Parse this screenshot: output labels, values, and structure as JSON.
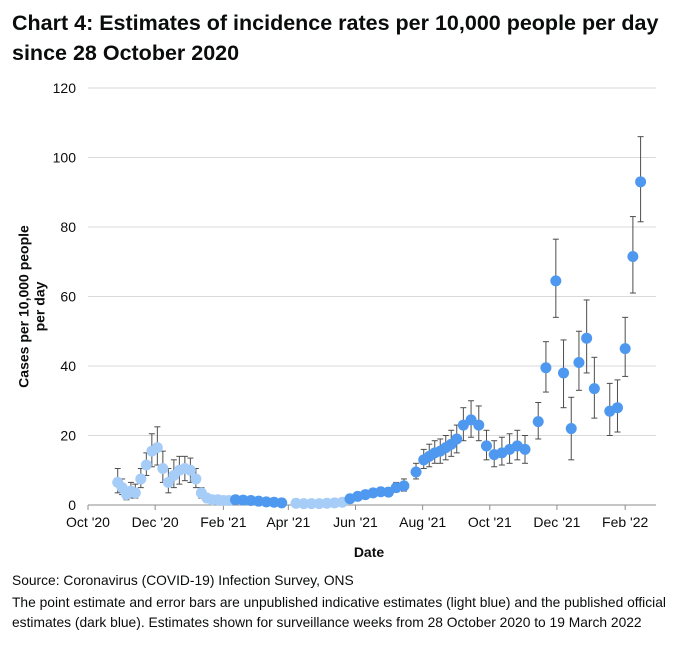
{
  "title": "Chart 4: Estimates of incidence rates per 10,000 people per day since 28 October 2020",
  "source": "Source: Coronavirus (COVID-19) Infection Survey, ONS",
  "note": "The point estimate and error bars are unpublished indicative estimates (light blue) and the published official estimates (dark blue). Estimates shown for surveillance weeks from 28 October 2020 to 19 March 2022",
  "colors": {
    "light": "#a6cdf7",
    "dark": "#4e98f0",
    "errorbar": "#4d4d4d",
    "grid": "#d9d9d9"
  },
  "chart_data": {
    "type": "scatter",
    "xlabel": "Date",
    "ylabel": "Cases per 10,000 people per day",
    "ylim": [
      0,
      120
    ],
    "yticks": [
      0,
      20,
      40,
      60,
      80,
      100,
      120
    ],
    "xlim": [
      "2020-10-01",
      "2022-03-01"
    ],
    "xticks": [
      {
        "date": "2020-10-01",
        "label": "Oct '20"
      },
      {
        "date": "2020-12-01",
        "label": "Dec '20"
      },
      {
        "date": "2021-02-01",
        "label": "Feb '21"
      },
      {
        "date": "2021-04-01",
        "label": "Apr '21"
      },
      {
        "date": "2021-06-01",
        "label": "Jun '21"
      },
      {
        "date": "2021-08-01",
        "label": "Aug '21"
      },
      {
        "date": "2021-10-01",
        "label": "Oct '21"
      },
      {
        "date": "2021-12-01",
        "label": "Dec '21"
      },
      {
        "date": "2022-02-01",
        "label": "Feb '22"
      }
    ],
    "grid": "horizontal",
    "series": [
      {
        "type": "unpublished",
        "points": [
          {
            "x": "2020-10-28",
            "y": 6.5,
            "lo": 3.5,
            "hi": 10.5
          },
          {
            "x": "2020-11-01",
            "y": 5.0,
            "lo": 3.0,
            "hi": 7.5
          },
          {
            "x": "2020-11-05",
            "y": 3.0,
            "lo": 1.5,
            "hi": 5.0
          },
          {
            "x": "2020-11-09",
            "y": 4.0,
            "lo": 2.0,
            "hi": 6.5
          },
          {
            "x": "2020-11-13",
            "y": 3.5,
            "lo": 2.0,
            "hi": 6.0
          },
          {
            "x": "2020-11-18",
            "y": 7.5,
            "lo": 5.0,
            "hi": 10.5
          },
          {
            "x": "2020-11-23",
            "y": 11.5,
            "lo": 8.5,
            "hi": 15.0
          },
          {
            "x": "2020-11-28",
            "y": 15.5,
            "lo": 11.0,
            "hi": 20.5
          },
          {
            "x": "2020-12-03",
            "y": 16.5,
            "lo": 11.5,
            "hi": 22.5
          },
          {
            "x": "2020-12-08",
            "y": 10.5,
            "lo": 6.5,
            "hi": 15.5
          },
          {
            "x": "2020-12-13",
            "y": 6.5,
            "lo": 3.5,
            "hi": 10.5
          },
          {
            "x": "2020-12-18",
            "y": 8.5,
            "lo": 5.0,
            "hi": 13.0
          },
          {
            "x": "2020-12-23",
            "y": 10.0,
            "lo": 6.0,
            "hi": 14.0
          },
          {
            "x": "2020-12-28",
            "y": 10.5,
            "lo": 7.0,
            "hi": 14.0
          },
          {
            "x": "2021-01-02",
            "y": 10.0,
            "lo": 6.5,
            "hi": 13.5
          },
          {
            "x": "2021-01-07",
            "y": 7.5,
            "lo": 5.0,
            "hi": 10.5
          },
          {
            "x": "2021-01-12",
            "y": 3.5,
            "lo": 2.0,
            "hi": 5.0
          },
          {
            "x": "2021-01-17",
            "y": 2.0,
            "lo": 1.2,
            "hi": 3.0
          },
          {
            "x": "2021-01-22",
            "y": 1.5,
            "lo": 1.0,
            "hi": 2.3
          },
          {
            "x": "2021-01-27",
            "y": 1.5,
            "lo": 1.0,
            "hi": 2.0
          },
          {
            "x": "2021-02-01",
            "y": 1.3,
            "lo": 0.9,
            "hi": 1.8
          },
          {
            "x": "2021-02-06",
            "y": 1.3,
            "lo": 0.9,
            "hi": 1.8
          },
          {
            "x": "2021-04-08",
            "y": 0.5,
            "lo": 0.3,
            "hi": 0.8
          },
          {
            "x": "2021-04-15",
            "y": 0.4,
            "lo": 0.2,
            "hi": 0.7
          },
          {
            "x": "2021-04-22",
            "y": 0.4,
            "lo": 0.2,
            "hi": 0.7
          },
          {
            "x": "2021-04-29",
            "y": 0.4,
            "lo": 0.2,
            "hi": 0.7
          },
          {
            "x": "2021-05-06",
            "y": 0.5,
            "lo": 0.3,
            "hi": 0.8
          },
          {
            "x": "2021-05-13",
            "y": 0.6,
            "lo": 0.3,
            "hi": 0.9
          },
          {
            "x": "2021-05-20",
            "y": 0.8,
            "lo": 0.5,
            "hi": 1.2
          }
        ]
      },
      {
        "type": "published",
        "points": [
          {
            "x": "2021-02-12",
            "y": 1.5,
            "lo": 1.0,
            "hi": 2.2
          },
          {
            "x": "2021-02-19",
            "y": 1.4,
            "lo": 1.0,
            "hi": 2.0
          },
          {
            "x": "2021-02-26",
            "y": 1.3,
            "lo": 0.9,
            "hi": 1.8
          },
          {
            "x": "2021-03-05",
            "y": 1.1,
            "lo": 0.8,
            "hi": 1.5
          },
          {
            "x": "2021-03-12",
            "y": 0.9,
            "lo": 0.6,
            "hi": 1.3
          },
          {
            "x": "2021-03-19",
            "y": 0.8,
            "lo": 0.5,
            "hi": 1.2
          },
          {
            "x": "2021-03-26",
            "y": 0.6,
            "lo": 0.4,
            "hi": 1.0
          },
          {
            "x": "2021-05-27",
            "y": 1.8,
            "lo": 1.2,
            "hi": 2.6
          },
          {
            "x": "2021-06-03",
            "y": 2.5,
            "lo": 1.8,
            "hi": 3.3
          },
          {
            "x": "2021-06-10",
            "y": 3.0,
            "lo": 2.2,
            "hi": 4.0
          },
          {
            "x": "2021-06-17",
            "y": 3.5,
            "lo": 2.5,
            "hi": 4.6
          },
          {
            "x": "2021-06-24",
            "y": 3.8,
            "lo": 2.8,
            "hi": 5.0
          },
          {
            "x": "2021-07-01",
            "y": 3.7,
            "lo": 2.7,
            "hi": 5.0
          },
          {
            "x": "2021-07-08",
            "y": 5.0,
            "lo": 3.8,
            "hi": 6.5
          },
          {
            "x": "2021-07-15",
            "y": 5.5,
            "lo": 4.0,
            "hi": 7.5
          },
          {
            "x": "2021-07-26",
            "y": 9.5,
            "lo": 7.5,
            "hi": 12.0
          },
          {
            "x": "2021-08-02",
            "y": 13.0,
            "lo": 10.5,
            "hi": 16.0
          },
          {
            "x": "2021-08-07",
            "y": 14.0,
            "lo": 11.0,
            "hi": 17.5
          },
          {
            "x": "2021-08-12",
            "y": 15.0,
            "lo": 12.0,
            "hi": 18.5
          },
          {
            "x": "2021-08-17",
            "y": 15.5,
            "lo": 12.0,
            "hi": 19.0
          },
          {
            "x": "2021-08-22",
            "y": 16.5,
            "lo": 13.0,
            "hi": 20.0
          },
          {
            "x": "2021-08-27",
            "y": 17.5,
            "lo": 14.0,
            "hi": 21.5
          },
          {
            "x": "2021-09-01",
            "y": 19.0,
            "lo": 15.0,
            "hi": 23.0
          },
          {
            "x": "2021-09-07",
            "y": 23.0,
            "lo": 18.5,
            "hi": 28.0
          },
          {
            "x": "2021-09-14",
            "y": 24.5,
            "lo": 19.5,
            "hi": 30.0
          },
          {
            "x": "2021-09-21",
            "y": 23.0,
            "lo": 18.5,
            "hi": 28.5
          },
          {
            "x": "2021-09-28",
            "y": 17.0,
            "lo": 13.0,
            "hi": 21.5
          },
          {
            "x": "2021-10-05",
            "y": 14.5,
            "lo": 11.0,
            "hi": 18.5
          },
          {
            "x": "2021-10-12",
            "y": 15.0,
            "lo": 11.5,
            "hi": 19.5
          },
          {
            "x": "2021-10-19",
            "y": 16.0,
            "lo": 12.0,
            "hi": 20.5
          },
          {
            "x": "2021-10-26",
            "y": 17.0,
            "lo": 13.0,
            "hi": 21.5
          },
          {
            "x": "2021-11-02",
            "y": 16.0,
            "lo": 12.0,
            "hi": 20.0
          },
          {
            "x": "2021-11-14",
            "y": 24.0,
            "lo": 19.0,
            "hi": 29.5
          },
          {
            "x": "2021-11-21",
            "y": 39.5,
            "lo": 32.5,
            "hi": 47.0
          },
          {
            "x": "2021-11-30",
            "y": 64.5,
            "lo": 54.0,
            "hi": 76.5
          },
          {
            "x": "2021-12-07",
            "y": 38.0,
            "lo": 28.0,
            "hi": 47.5
          },
          {
            "x": "2021-12-14",
            "y": 22.0,
            "lo": 13.0,
            "hi": 31.0
          },
          {
            "x": "2021-12-21",
            "y": 41.0,
            "lo": 33.0,
            "hi": 50.0
          },
          {
            "x": "2021-12-28",
            "y": 48.0,
            "lo": 38.0,
            "hi": 59.0
          },
          {
            "x": "2022-01-04",
            "y": 33.5,
            "lo": 25.0,
            "hi": 42.5
          },
          {
            "x": "2022-01-18",
            "y": 27.0,
            "lo": 20.0,
            "hi": 35.0
          },
          {
            "x": "2022-01-25",
            "y": 28.0,
            "lo": 21.0,
            "hi": 36.0
          },
          {
            "x": "2022-02-01",
            "y": 45.0,
            "lo": 37.0,
            "hi": 54.0
          },
          {
            "x": "2022-02-08",
            "y": 71.5,
            "lo": 61.0,
            "hi": 83.0
          },
          {
            "x": "2022-02-15",
            "y": 93.0,
            "lo": 81.5,
            "hi": 106.0
          }
        ]
      }
    ]
  }
}
